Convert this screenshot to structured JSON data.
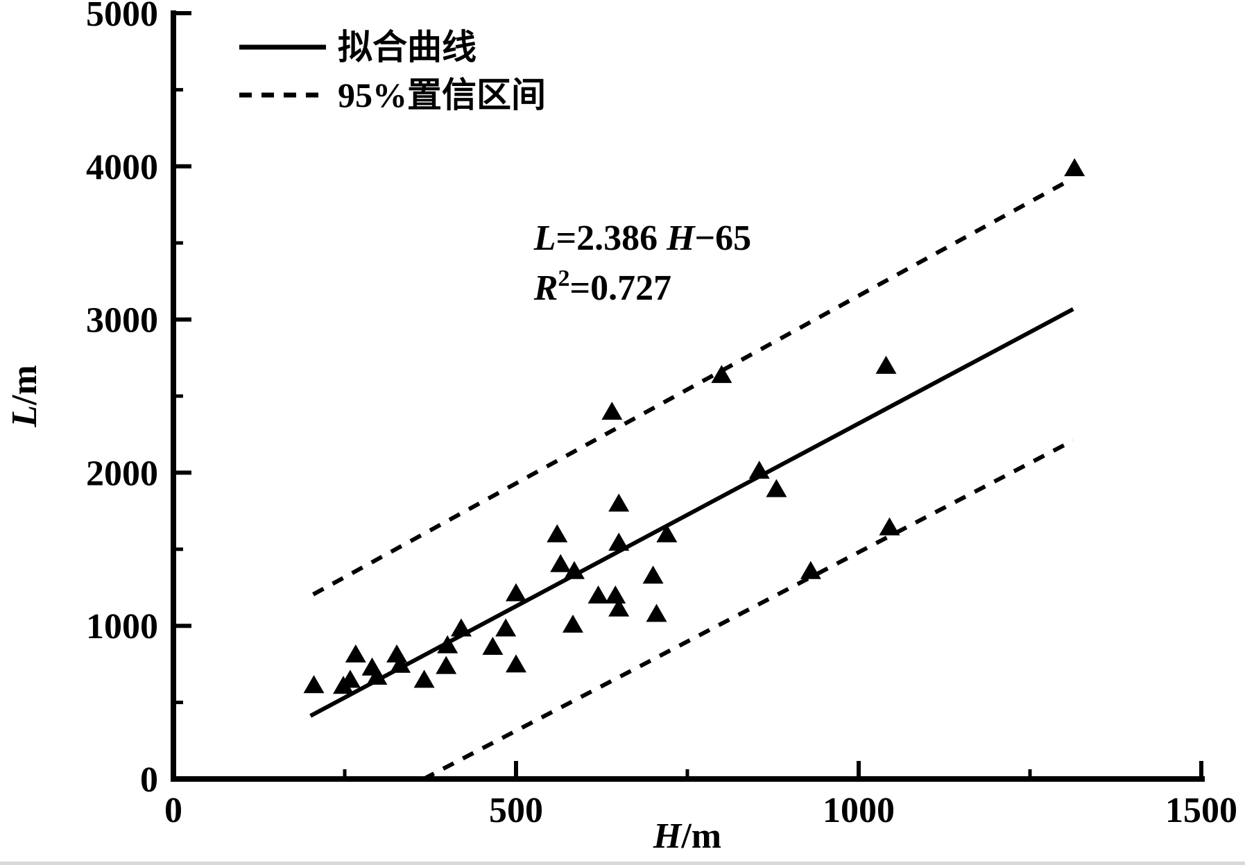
{
  "figure": {
    "background": "#ffffff",
    "ink": "#000000",
    "scan_edge_color": "#d9d9d9"
  },
  "chart_data": {
    "type": "scatter",
    "title": "",
    "xlabel_parts": [
      {
        "t": "H",
        "italic": true
      },
      {
        "t": "/m",
        "italic": false
      }
    ],
    "ylabel_parts": [
      {
        "t": "L",
        "italic": true
      },
      {
        "t": "/m",
        "italic": false
      }
    ],
    "xlim": [
      0,
      1500
    ],
    "ylim": [
      0,
      5000
    ],
    "x_major_ticks": [
      0,
      500,
      1000,
      1500
    ],
    "x_minor_ticks": [
      250,
      750,
      1250
    ],
    "y_major_ticks": [
      0,
      1000,
      2000,
      3000,
      4000,
      5000
    ],
    "y_minor_ticks": [
      500,
      1500,
      2500,
      3500,
      4500
    ],
    "grid": false,
    "marker": "filled-triangle-up",
    "marker_color": "#000000",
    "points": [
      [
        205,
        615
      ],
      [
        248,
        610
      ],
      [
        258,
        650
      ],
      [
        266,
        815
      ],
      [
        290,
        730
      ],
      [
        297,
        670
      ],
      [
        326,
        815
      ],
      [
        331,
        748
      ],
      [
        366,
        650
      ],
      [
        398,
        740
      ],
      [
        400,
        875
      ],
      [
        420,
        985
      ],
      [
        466,
        865
      ],
      [
        485,
        985
      ],
      [
        500,
        750
      ],
      [
        500,
        1215
      ],
      [
        583,
        1010
      ],
      [
        560,
        1600
      ],
      [
        565,
        1405
      ],
      [
        585,
        1360
      ],
      [
        620,
        1200
      ],
      [
        645,
        1200
      ],
      [
        650,
        1115
      ],
      [
        650,
        1545
      ],
      [
        650,
        1800
      ],
      [
        640,
        2400
      ],
      [
        700,
        1330
      ],
      [
        705,
        1080
      ],
      [
        720,
        1600
      ],
      [
        800,
        2640
      ],
      [
        855,
        2015
      ],
      [
        880,
        1895
      ],
      [
        930,
        1360
      ],
      [
        1040,
        2700
      ],
      [
        1045,
        1645
      ],
      [
        1315,
        3990
      ]
    ],
    "fit_line": {
      "slope": 2.386,
      "intercept": -65,
      "x_range": [
        200,
        1313
      ],
      "style": "solid"
    },
    "confidence_band": {
      "level": "95%",
      "upper": [
        [
          204,
          1205
        ],
        [
          1308,
          3910
        ]
      ],
      "lower": [
        [
          365,
          0
        ],
        [
          1313,
          2210
        ]
      ],
      "style": "dashed"
    },
    "legend": {
      "position": "top-left-inside",
      "items": [
        {
          "label": "拟合曲线",
          "line": "solid"
        },
        {
          "label": "95%置信区间",
          "line": "dashed"
        }
      ]
    },
    "annotations": [
      {
        "x": 526,
        "y": 3456,
        "parts": [
          {
            "t": "L",
            "italic": true
          },
          {
            "t": "=2.386 ",
            "italic": false
          },
          {
            "t": "H",
            "italic": true
          },
          {
            "t": "−65",
            "italic": false
          }
        ]
      },
      {
        "x": 526,
        "y": 3130,
        "parts": [
          {
            "t": "R",
            "italic": true
          },
          {
            "t": "2",
            "italic": false,
            "sup": true
          },
          {
            "t": "=0.727",
            "italic": false
          }
        ]
      }
    ]
  }
}
